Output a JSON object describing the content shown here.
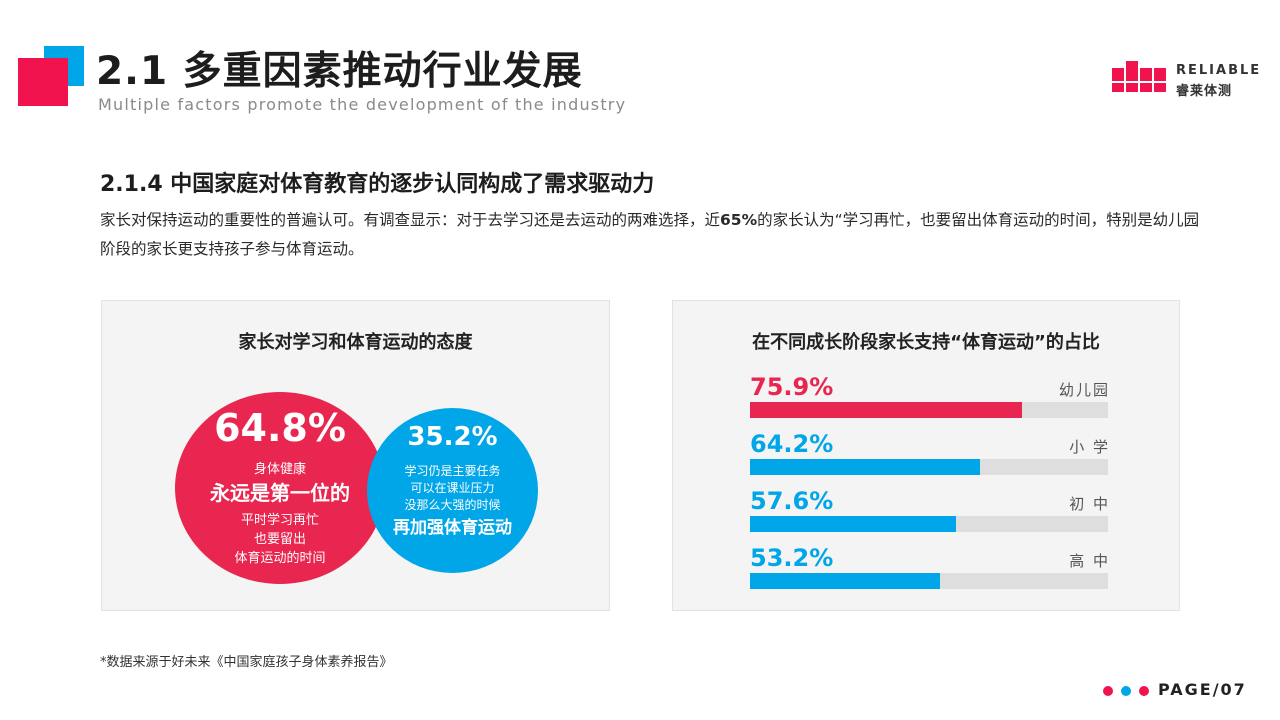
{
  "header": {
    "title": "2.1 多重因素推动行业发展",
    "subtitle": "Multiple factors promote the development of the industry"
  },
  "logo": {
    "text_en": "RELIABLE",
    "text_cn": "睿莱体测"
  },
  "section": {
    "title": "2.1.4 中国家庭对体育教育的逐步认同构成了需求驱动力",
    "intro_part1": "家长对保持运动的重要性的普遍认可。有调查显示：对于去学习还是去运动的两难选择，近",
    "intro_bold": "65%",
    "intro_part2": "的家长认为“学习再忙，也要留出体育运动的时间，特别是幼儿园阶段的家长更支持孩子参与体育运动。"
  },
  "left_panel": {
    "title": "家长对学习和体育运动的态度",
    "red_circle": {
      "percent": "64.8%",
      "line1": "身体健康",
      "line2": "永远是第一位的",
      "line3": "平时学习再忙",
      "line4": "也要留出",
      "line5": "体育运动的时间"
    },
    "blue_circle": {
      "percent": "35.2%",
      "line1": "学习仍是主要任务",
      "line2": "可以在课业压力",
      "line3": "没那么大强的时候",
      "line4": "再加强体育运动"
    }
  },
  "right_panel": {
    "title": "在不同成长阶段家长支持“体育运动”的占比"
  },
  "chart_data": [
    {
      "type": "pie",
      "title": "家长对学习和体育运动的态度",
      "categories": [
        "身体健康永远是第一位的",
        "学习仍是主要任务"
      ],
      "values": [
        64.8,
        35.2
      ],
      "colors": [
        "#e8264f",
        "#00a6e8"
      ]
    },
    {
      "type": "bar",
      "title": "在不同成长阶段家长支持“体育运动”的占比",
      "categories": [
        "幼儿园",
        "小 学",
        "初 中",
        "高 中"
      ],
      "values": [
        75.9,
        64.2,
        57.6,
        53.2
      ],
      "labels": [
        "75.9%",
        "64.2%",
        "57.6%",
        "53.2%"
      ],
      "colors": [
        "#e8264f",
        "#00a6e8",
        "#00a6e8",
        "#00a6e8"
      ],
      "ylim": [
        0,
        100
      ]
    }
  ],
  "footer": {
    "note": "*数据来源于好未来《中国家庭孩子身体素养报告》",
    "page": "PAGE/07",
    "dot_colors": [
      "#f0134d",
      "#00a6e8",
      "#f0134d"
    ]
  }
}
